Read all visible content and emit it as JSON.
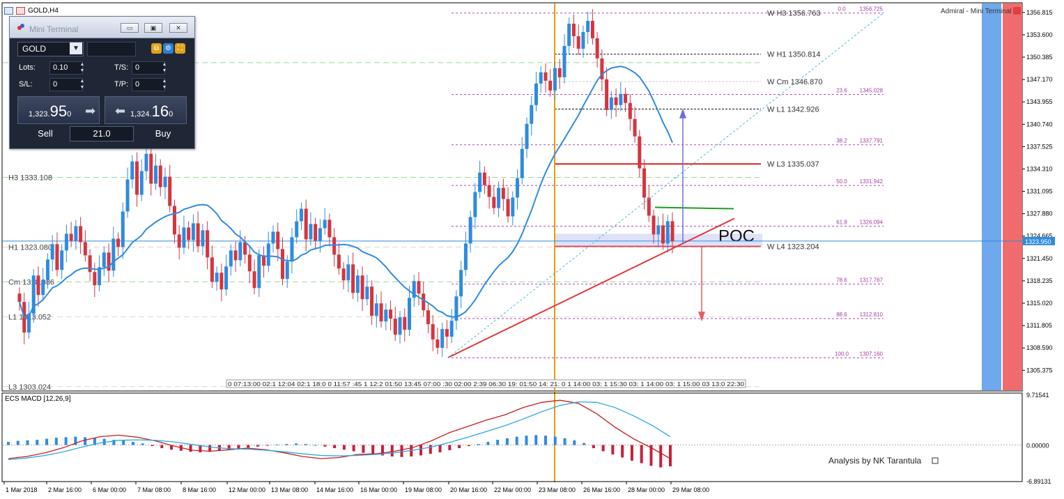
{
  "window": {
    "title": "GOLD,H4"
  },
  "chart_data": [
    {
      "type": "candlestick",
      "title": "GOLD,H4",
      "ylim": [
        1302.5,
        1358.0
      ],
      "ytick_labels": [
        "1356.815",
        "1353.600",
        "1350.385",
        "1347.170",
        "1343.955",
        "1340.740",
        "1337.525",
        "1334.310",
        "1331.095",
        "1327.880",
        "1324.665",
        "1321.450",
        "1318.235",
        "1315.020",
        "1311.805",
        "1308.590",
        "1305.375"
      ],
      "current_price": 1323.95,
      "current_price_label": "1323.950",
      "xtick_labels": [
        "1 Mar 2018",
        "2 Mar 16:00",
        "6 Mar 00:00",
        "7 Mar 08:00",
        "8 Mar 16:00",
        "12 Mar 00:00",
        "13 Mar 08:00",
        "14 Mar 16:00",
        "16 Mar 00:00",
        "19 Mar 08:00",
        "20 Mar 16:00",
        "22 Mar 00:00",
        "23 Mar 08:00",
        "26 Mar 16:00",
        "28 Mar 00:00",
        "29 Mar 08:00"
      ],
      "candles_close": [
        1315.2,
        1310.8,
        1313.5,
        1319.0,
        1316.2,
        1318.4,
        1321.3,
        1323.5,
        1319.8,
        1322.6,
        1325.0,
        1324.0,
        1326.1,
        1323.8,
        1321.9,
        1319.5,
        1317.6,
        1320.2,
        1322.3,
        1319.7,
        1324.3,
        1323.1,
        1328.2,
        1332.8,
        1335.4,
        1330.6,
        1334.0,
        1336.5,
        1332.2,
        1334.8,
        1331.7,
        1333.2,
        1329.0,
        1324.9,
        1323.0,
        1325.9,
        1324.1,
        1326.5,
        1323.2,
        1325.5,
        1321.6,
        1318.1,
        1319.4,
        1317.0,
        1320.3,
        1322.6,
        1321.2,
        1323.8,
        1322.0,
        1319.6,
        1317.2,
        1321.9,
        1320.4,
        1323.6,
        1325.3,
        1322.8,
        1318.5,
        1321.0,
        1324.5,
        1326.8,
        1328.6,
        1324.2,
        1326.4,
        1324.0,
        1325.8,
        1327.0,
        1324.5,
        1322.0,
        1320.0,
        1318.3,
        1320.6,
        1316.5,
        1319.0,
        1315.6,
        1317.4,
        1313.2,
        1315.0,
        1312.4,
        1314.1,
        1312.8,
        1310.5,
        1313.0,
        1311.2,
        1315.8,
        1318.2,
        1316.4,
        1314.0,
        1312.0,
        1309.8,
        1308.6,
        1311.3,
        1310.2,
        1312.5,
        1316.0,
        1319.8,
        1323.6,
        1327.4,
        1331.0,
        1333.8,
        1332.0,
        1330.3,
        1328.7,
        1331.6,
        1330.0,
        1327.5,
        1330.2,
        1333.0,
        1337.2,
        1340.8,
        1343.5,
        1346.6,
        1348.2,
        1347.0,
        1345.6,
        1348.8,
        1347.5,
        1352.0,
        1355.2,
        1353.4,
        1351.6,
        1354.0,
        1355.6,
        1353.1,
        1350.2,
        1347.2,
        1342.8,
        1344.6,
        1343.5,
        1345.1,
        1343.8,
        1341.5,
        1339.0,
        1334.4,
        1330.2,
        1327.6,
        1324.9,
        1326.2,
        1323.6,
        1326.8,
        1323.9
      ],
      "indicators": [
        {
          "name": "Moving Average",
          "color": "#2e8be0"
        }
      ],
      "series_colors": {
        "bull": "#2e8be0",
        "bear": "#d4353f"
      },
      "levels_left": [
        {
          "label": "H3 1333.108"
        },
        {
          "label": "H1 1323.080"
        },
        {
          "label": "Cm 1318.086"
        },
        {
          "label": "L1 1313.052"
        },
        {
          "label": "L3 1303.024"
        }
      ],
      "weekly_levels": [
        {
          "label": "W  H3 1356.763",
          "value": 1356.763
        },
        {
          "label": "W  H1 1350.814",
          "value": 1350.814
        },
        {
          "label": "W  Cm  1346.870",
          "value": 1346.87
        },
        {
          "label": "W  L1 1342.926",
          "value": 1342.926
        },
        {
          "label": "W  L3 1335.037",
          "value": 1335.037
        },
        {
          "label": "W  L4 1323.204",
          "value": 1323.204
        }
      ],
      "fibonacci": [
        {
          "ratio": "0.0",
          "price": "1356.725",
          "value": 1356.725
        },
        {
          "ratio": "23.6",
          "price": "1345.028",
          "value": 1345.028
        },
        {
          "ratio": "38.2",
          "price": "1337.791",
          "value": 1337.791
        },
        {
          "ratio": "50.0",
          "price": "1331.942",
          "value": 1331.942
        },
        {
          "ratio": "61.8",
          "price": "1326.094",
          "value": 1326.094
        },
        {
          "ratio": "78.6",
          "price": "1317.767",
          "value": 1317.767
        },
        {
          "ratio": "88.6",
          "price": "1312.810",
          "value": 1312.81
        },
        {
          "ratio": "100.0",
          "price": "1307.160",
          "value": 1307.16
        }
      ],
      "annotations": {
        "poc_label": "POC",
        "broker_label": "Admiral - Mini Terminal",
        "session_strip": "0 07:13:00 02:1 12:04 02:1 18:0 0 11:57 :45 1 12:2 01:50 13:45 07:00 :30 02:00 2:39 06:30 19: 01:50 14: 21: 0 1 14:00 03: 1 15:30 03: 1 14:00 03: 1 15:00 03 13:0 22:30"
      }
    },
    {
      "type": "histogram+line",
      "title": "ECS MACD [12,26,9]",
      "ytick_labels": [
        "9.71541",
        "0.00000",
        "-6.89131"
      ],
      "ylim": [
        -6.89131,
        9.71541
      ],
      "series": [
        {
          "name": "MACD histogram",
          "values": [
            0.6,
            0.8,
            0.9,
            1.0,
            1.2,
            1.4,
            1.5,
            1.6,
            1.5,
            1.4,
            1.2,
            1.0,
            0.9,
            0.6,
            0.3,
            -0.2,
            -0.6,
            -0.9,
            -1.1,
            -1.3,
            -1.4,
            -1.3,
            -1.1,
            -0.9,
            -0.7,
            -0.5,
            -0.3,
            -0.1,
            0.1,
            0.2,
            0.3,
            0.2,
            0.0,
            -0.3,
            -0.6,
            -0.9,
            -1.2,
            -1.5,
            -1.8,
            -2.0,
            -2.2,
            -2.3,
            -2.2,
            -2.0,
            -1.7,
            -1.4,
            -1.0,
            -0.6,
            -0.2,
            0.2,
            0.6,
            1.0,
            1.3,
            1.6,
            1.8,
            1.9,
            1.8,
            1.6,
            1.3,
            0.9,
            0.4,
            -0.6,
            -1.2,
            -1.8,
            -2.4,
            -3.0,
            -3.5,
            -4.0,
            -4.3,
            -4.1
          ]
        },
        {
          "name": "MACD",
          "color": "#c81e1e",
          "values": [
            -2.6,
            -2.2,
            -1.5,
            -0.5,
            0.8,
            1.6,
            1.9,
            1.5,
            0.8,
            -0.2,
            -1.0,
            -1.2,
            -0.9,
            -0.6,
            -0.9,
            -1.5,
            -2.2,
            -2.6,
            -2.4,
            -1.8,
            -1.7,
            -1.2,
            -0.5,
            0.8,
            2.4,
            3.6,
            4.8,
            5.8,
            7.2,
            8.2,
            8.6,
            8.0,
            6.0,
            3.4,
            1.2,
            -0.6,
            -2.6
          ]
        },
        {
          "name": "Signal",
          "color": "#27a9e1",
          "values": [
            -2.8,
            -2.5,
            -2.0,
            -1.3,
            -0.4,
            0.4,
            0.9,
            1.0,
            0.9,
            0.6,
            0.1,
            -0.4,
            -0.7,
            -0.8,
            -1.0,
            -1.3,
            -1.7,
            -2.0,
            -2.1,
            -2.0,
            -1.8,
            -1.5,
            -1.0,
            -0.4,
            0.5,
            1.5,
            2.6,
            3.7,
            5.0,
            6.4,
            7.6,
            8.3,
            8.2,
            7.2,
            5.6,
            3.8,
            1.6
          ]
        }
      ],
      "xtick_labels": [
        "1 Mar 2018",
        "2 Mar 16:00",
        "6 Mar 00:00",
        "7 Mar 08:00",
        "8 Mar 16:00",
        "12 Mar 00:00",
        "13 Mar 08:00",
        "14 Mar 16:00",
        "16 Mar 00:00",
        "19 Mar 08:00",
        "20 Mar 16:00",
        "22 Mar 00:00",
        "23 Mar 08:00",
        "26 Mar 16:00",
        "28 Mar 00:00",
        "29 Mar 08:00"
      ],
      "signature": "Analysis by NK Tarantula"
    }
  ],
  "mini_terminal": {
    "title": "Mini Terminal",
    "symbol": "GOLD",
    "lots_label": "Lots:",
    "lots_value": "0.10",
    "ts_label": "T/S:",
    "ts_value": "0",
    "sl_label": "S/L:",
    "sl_value": "0",
    "tp_label": "T/P:",
    "tp_value": "0",
    "sell_price_prefix": "1,323.",
    "sell_price_big": "95",
    "sell_price_suffix": "0",
    "buy_price_prefix": "1,324.",
    "buy_price_big": "16",
    "buy_price_suffix": "0",
    "spread": "21.0",
    "sell_label": "Sell",
    "buy_label": "Buy"
  }
}
